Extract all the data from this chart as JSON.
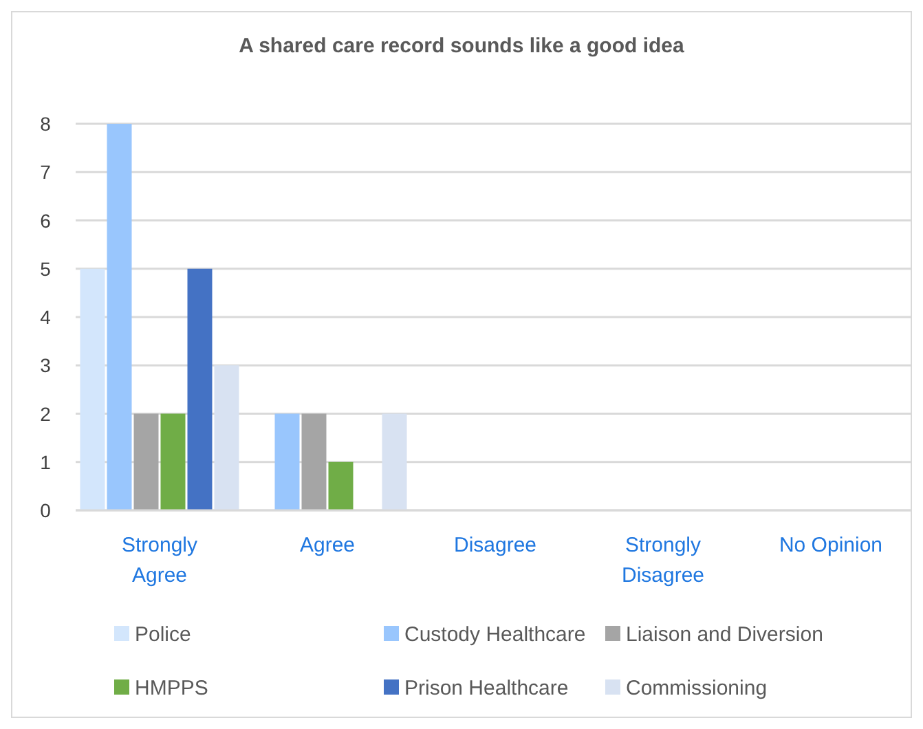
{
  "chart_data": {
    "type": "bar",
    "title": "A shared care record sounds like a good idea",
    "categories": [
      "Strongly Agree",
      "Agree",
      "Disagree",
      "Strongly Disagree",
      "No Opinion"
    ],
    "series": [
      {
        "name": "Police",
        "color": "#d3e6fc",
        "values": [
          5,
          0,
          0,
          0,
          0
        ]
      },
      {
        "name": "Custody Healthcare",
        "color": "#99c6fd",
        "values": [
          8,
          2,
          0,
          0,
          0
        ]
      },
      {
        "name": "Liaison and Diversion",
        "color": "#a5a5a5",
        "values": [
          2,
          2,
          0,
          0,
          0
        ]
      },
      {
        "name": "HMPPS",
        "color": "#70ad47",
        "values": [
          2,
          1,
          0,
          0,
          0
        ]
      },
      {
        "name": "Prison Healthcare",
        "color": "#4472c4",
        "values": [
          5,
          0,
          0,
          0,
          0
        ]
      },
      {
        "name": "Commissioning",
        "color": "#d8e2f2",
        "values": [
          3,
          2,
          0,
          0,
          0
        ]
      }
    ],
    "ylim": [
      0,
      8
    ],
    "yticks": [
      0,
      1,
      2,
      3,
      4,
      5,
      6,
      7,
      8
    ],
    "grid": "y",
    "legend": "bottom"
  }
}
